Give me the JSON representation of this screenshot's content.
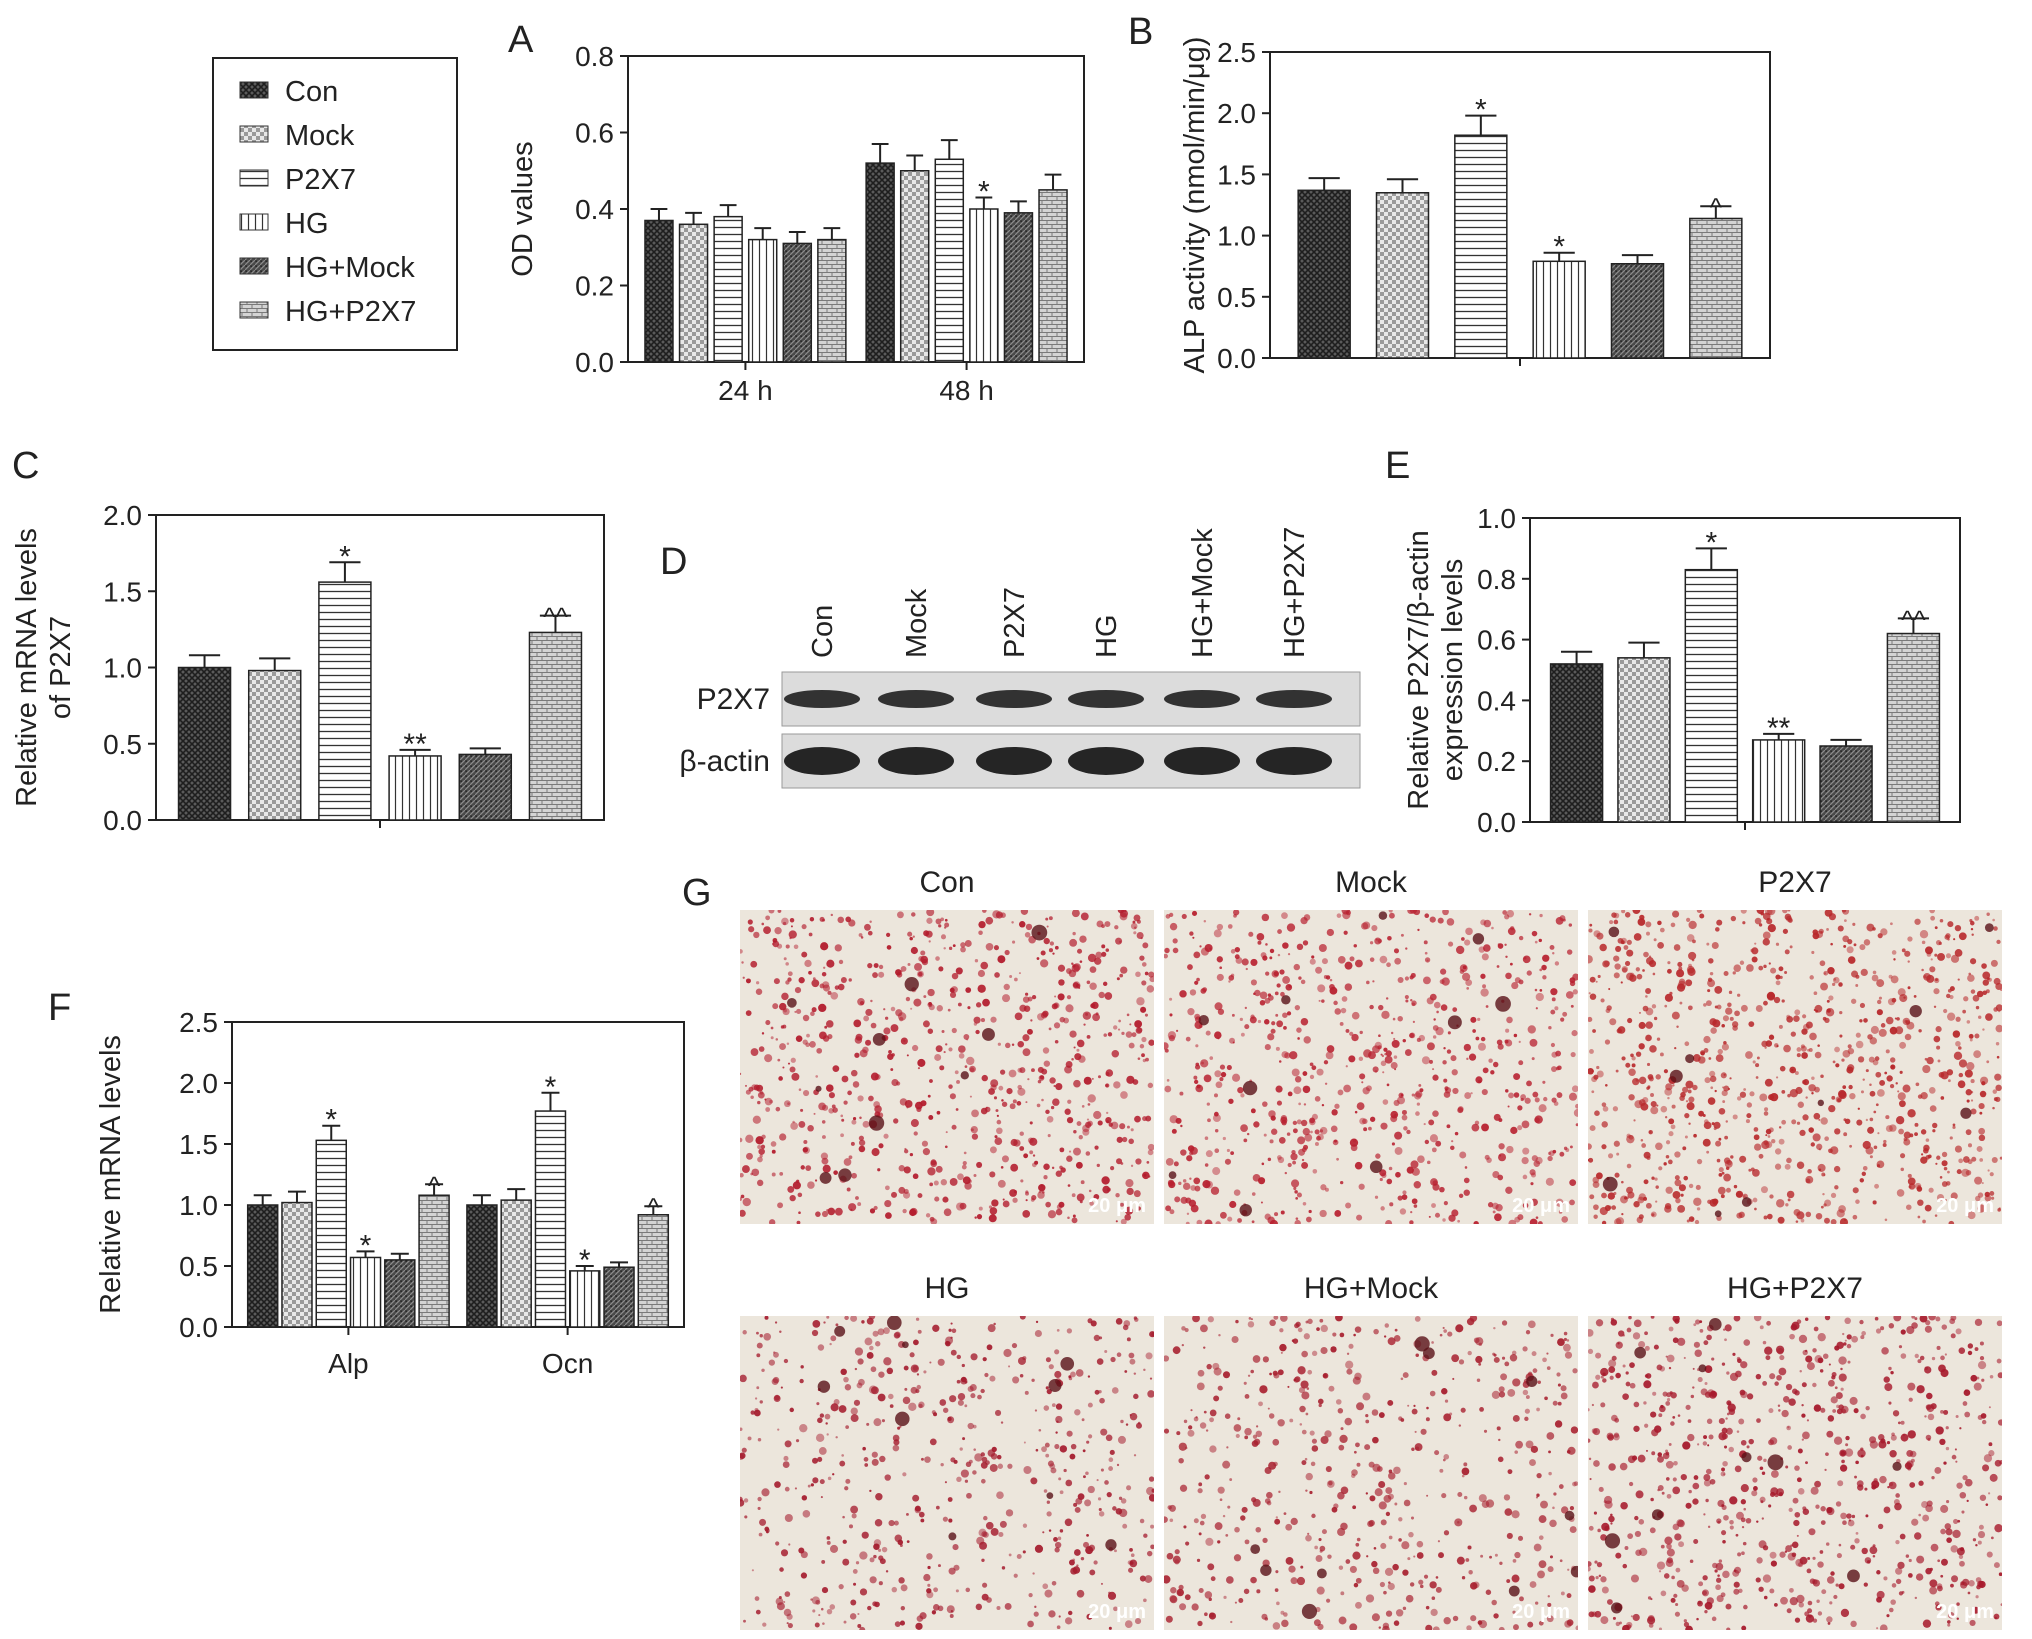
{
  "legend": {
    "entries": [
      {
        "name": "Con",
        "pattern": "cross"
      },
      {
        "name": "Mock",
        "pattern": "check"
      },
      {
        "name": "P2X7",
        "pattern": "hline"
      },
      {
        "name": "HG",
        "pattern": "vline"
      },
      {
        "name": "HG+Mock",
        "pattern": "dense"
      },
      {
        "name": "HG+P2X7",
        "pattern": "brick"
      }
    ]
  },
  "chart_data": [
    {
      "panel": "A",
      "type": "bar",
      "ylabel": "OD values",
      "categories": [
        "24 h",
        "48 h"
      ],
      "ylim": [
        0,
        0.8
      ],
      "yticks": [
        "0.0",
        "0.2",
        "0.4",
        "0.6",
        "0.8"
      ],
      "series": [
        {
          "name": "Con",
          "values": [
            0.37,
            0.52
          ],
          "errors": [
            0.03,
            0.05
          ],
          "annot": [
            "",
            ""
          ]
        },
        {
          "name": "Mock",
          "values": [
            0.36,
            0.5
          ],
          "errors": [
            0.03,
            0.04
          ],
          "annot": [
            "",
            ""
          ]
        },
        {
          "name": "P2X7",
          "values": [
            0.38,
            0.53
          ],
          "errors": [
            0.03,
            0.05
          ],
          "annot": [
            "",
            ""
          ]
        },
        {
          "name": "HG",
          "values": [
            0.32,
            0.4
          ],
          "errors": [
            0.03,
            0.03
          ],
          "annot": [
            "",
            "*"
          ]
        },
        {
          "name": "HG+Mock",
          "values": [
            0.31,
            0.39
          ],
          "errors": [
            0.03,
            0.03
          ],
          "annot": [
            "",
            ""
          ]
        },
        {
          "name": "HG+P2X7",
          "values": [
            0.32,
            0.45
          ],
          "errors": [
            0.03,
            0.04
          ],
          "annot": [
            "",
            ""
          ]
        }
      ]
    },
    {
      "panel": "B",
      "type": "bar",
      "ylabel": "ALP activity (nmol/min/μg)",
      "categories": [
        ""
      ],
      "ylim": [
        0,
        2.5
      ],
      "yticks": [
        "0.0",
        "0.5",
        "1.0",
        "1.5",
        "2.0",
        "2.5"
      ],
      "series": [
        {
          "name": "Con",
          "values": [
            1.37
          ],
          "errors": [
            0.1
          ],
          "annot": [
            ""
          ]
        },
        {
          "name": "Mock",
          "values": [
            1.35
          ],
          "errors": [
            0.11
          ],
          "annot": [
            ""
          ]
        },
        {
          "name": "P2X7",
          "values": [
            1.82
          ],
          "errors": [
            0.16
          ],
          "annot": [
            "*"
          ]
        },
        {
          "name": "HG",
          "values": [
            0.79
          ],
          "errors": [
            0.07
          ],
          "annot": [
            "*"
          ]
        },
        {
          "name": "HG+Mock",
          "values": [
            0.77
          ],
          "errors": [
            0.07
          ],
          "annot": [
            ""
          ]
        },
        {
          "name": "HG+P2X7",
          "values": [
            1.14
          ],
          "errors": [
            0.1
          ],
          "annot": [
            "^"
          ]
        }
      ]
    },
    {
      "panel": "C",
      "type": "bar",
      "ylabel": "Relative mRNA levels of P2X7",
      "categories": [
        ""
      ],
      "ylim": [
        0,
        2.0
      ],
      "yticks": [
        "0.0",
        "0.5",
        "1.0",
        "1.5",
        "2.0"
      ],
      "series": [
        {
          "name": "Con",
          "values": [
            1.0
          ],
          "errors": [
            0.08
          ],
          "annot": [
            ""
          ]
        },
        {
          "name": "Mock",
          "values": [
            0.98
          ],
          "errors": [
            0.08
          ],
          "annot": [
            ""
          ]
        },
        {
          "name": "P2X7",
          "values": [
            1.56
          ],
          "errors": [
            0.13
          ],
          "annot": [
            "*"
          ]
        },
        {
          "name": "HG",
          "values": [
            0.42
          ],
          "errors": [
            0.04
          ],
          "annot": [
            "**"
          ]
        },
        {
          "name": "HG+Mock",
          "values": [
            0.43
          ],
          "errors": [
            0.04
          ],
          "annot": [
            ""
          ]
        },
        {
          "name": "HG+P2X7",
          "values": [
            1.23
          ],
          "errors": [
            0.11
          ],
          "annot": [
            "^^"
          ]
        }
      ]
    },
    {
      "panel": "E",
      "type": "bar",
      "ylabel": "Relative P2X7/β-actin expression levels",
      "categories": [
        ""
      ],
      "ylim": [
        0,
        1.0
      ],
      "yticks": [
        "0.0",
        "0.2",
        "0.4",
        "0.6",
        "0.8",
        "1.0"
      ],
      "series": [
        {
          "name": "Con",
          "values": [
            0.52
          ],
          "errors": [
            0.04
          ],
          "annot": [
            ""
          ]
        },
        {
          "name": "Mock",
          "values": [
            0.54
          ],
          "errors": [
            0.05
          ],
          "annot": [
            ""
          ]
        },
        {
          "name": "P2X7",
          "values": [
            0.83
          ],
          "errors": [
            0.07
          ],
          "annot": [
            "*"
          ]
        },
        {
          "name": "HG",
          "values": [
            0.27
          ],
          "errors": [
            0.02
          ],
          "annot": [
            "**"
          ]
        },
        {
          "name": "HG+Mock",
          "values": [
            0.25
          ],
          "errors": [
            0.02
          ],
          "annot": [
            ""
          ]
        },
        {
          "name": "HG+P2X7",
          "values": [
            0.62
          ],
          "errors": [
            0.05
          ],
          "annot": [
            "^^"
          ]
        }
      ]
    },
    {
      "panel": "F",
      "type": "bar",
      "ylabel": "Relative mRNA levels",
      "categories": [
        "Alp",
        "Ocn"
      ],
      "ylim": [
        0,
        2.5
      ],
      "yticks": [
        "0.0",
        "0.5",
        "1.0",
        "1.5",
        "2.0",
        "2.5"
      ],
      "series": [
        {
          "name": "Con",
          "values": [
            1.0,
            1.0
          ],
          "errors": [
            0.08,
            0.08
          ],
          "annot": [
            "",
            ""
          ]
        },
        {
          "name": "Mock",
          "values": [
            1.02,
            1.04
          ],
          "errors": [
            0.09,
            0.09
          ],
          "annot": [
            "",
            ""
          ]
        },
        {
          "name": "P2X7",
          "values": [
            1.53,
            1.77
          ],
          "errors": [
            0.12,
            0.15
          ],
          "annot": [
            "*",
            "*"
          ]
        },
        {
          "name": "HG",
          "values": [
            0.57,
            0.46
          ],
          "errors": [
            0.05,
            0.04
          ],
          "annot": [
            "*",
            "*"
          ]
        },
        {
          "name": "HG+Mock",
          "values": [
            0.55,
            0.49
          ],
          "errors": [
            0.05,
            0.04
          ],
          "annot": [
            "",
            ""
          ]
        },
        {
          "name": "HG+P2X7",
          "values": [
            1.08,
            0.92
          ],
          "errors": [
            0.09,
            0.07
          ],
          "annot": [
            "^",
            "^"
          ]
        }
      ]
    }
  ],
  "blot": {
    "label": "D",
    "lanes": [
      "Con",
      "Mock",
      "P2X7",
      "HG",
      "HG+Mock",
      "HG+P2X7"
    ],
    "rows": [
      "P2X7",
      "β-actin"
    ]
  },
  "micrographs": {
    "label": "G",
    "scale_bar": "20 μm",
    "images": [
      {
        "title": "Con",
        "stain": "#b31b2c",
        "density": 0.55
      },
      {
        "title": "Mock",
        "stain": "#b8202f",
        "density": 0.5
      },
      {
        "title": "P2X7",
        "stain": "#b8282b",
        "density": 0.7
      },
      {
        "title": "HG",
        "stain": "#a51c2e",
        "density": 0.3
      },
      {
        "title": "HG+Mock",
        "stain": "#a8202f",
        "density": 0.28
      },
      {
        "title": "HG+P2X7",
        "stain": "#a71a2c",
        "density": 0.55
      }
    ]
  }
}
